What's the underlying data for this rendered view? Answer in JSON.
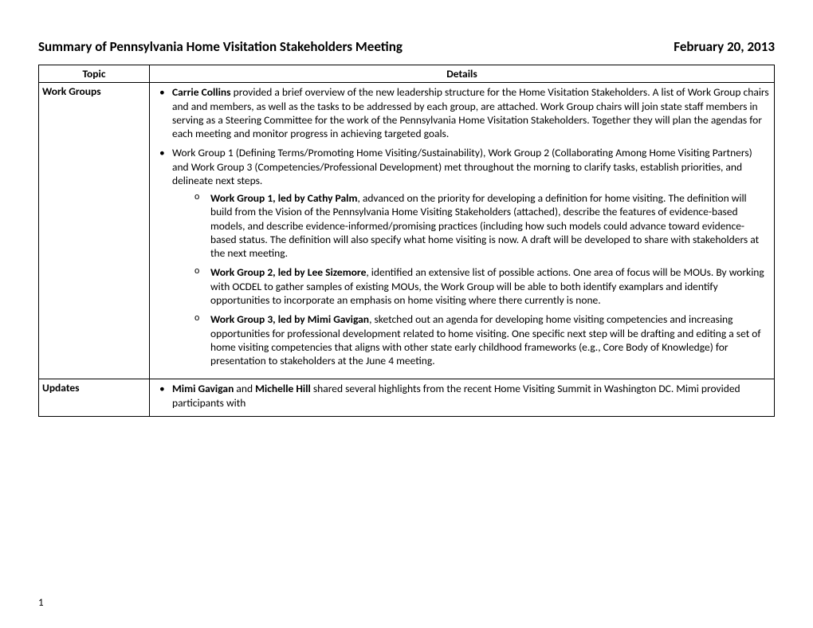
{
  "header": {
    "title": "Summary of Pennsylvania Home Visitation Stakeholders Meeting",
    "date": "February 20, 2013"
  },
  "columns": {
    "topic": "Topic",
    "details": "Details"
  },
  "row1": {
    "topic": "Work Groups",
    "b1_bold": "Carrie Collins",
    "b1_rest": " provided a brief overview of the new leadership structure for the Home Visitation Stakeholders. A list of Work Group chairs and and members, as well as the tasks to be addressed by each group, are attached. Work Group chairs will join state staff members in serving as a Steering Committee for the work of the Pennsylvania Home Visitation Stakeholders. Together they will plan the agendas for each meeting and monitor progress in achieving targeted goals.",
    "b2": "Work Group 1 (Defining Terms/Promoting Home Visiting/Sustainability), Work Group 2 (Collaborating Among Home Visiting Partners) and Work Group 3 (Competencies/Professional Development) met throughout the morning to clarify tasks, establish priorities, and delineate next steps.",
    "s1_bold": "Work Group 1, led by Cathy Palm",
    "s1_rest": ", advanced on the priority for developing a definition for home visiting. The definition will build from the Vision of the Pennsylvania Home Visiting Stakeholders (attached), describe the features of evidence-based models, and describe evidence-informed/promising practices (including how such models could advance toward evidence-based status. The definition will also specify what home visiting is now. A draft will be developed to share with stakeholders at the next meeting.",
    "s2_bold": "Work Group 2, led by Lee Sizemore",
    "s2_rest": ", identified an extensive list of possible actions. One area of focus will be MOUs. By working with OCDEL to gather samples of existing MOUs, the Work Group will be able to both identify examplars and identify opportunities to incorporate an emphasis on home visiting where there currently is none.",
    "s3_bold": "Work Group 3, led by Mimi Gavigan",
    "s3_rest": ", sketched out an agenda for developing home visiting competencies and increasing opportunities for professional development related to home visiting. One specific next step will be drafting and editing a set of home visiting competencies that aligns with other state early childhood frameworks (e.g., Core Body of Knowledge) for presentation to stakeholders at the June 4 meeting."
  },
  "row2": {
    "topic": "Updates",
    "b1_bold1": "Mimi Gavigan",
    "b1_mid": " and ",
    "b1_bold2": "Michelle Hill",
    "b1_rest": " shared several highlights from the recent Home Visiting Summit in Washington DC. Mimi provided participants with"
  },
  "pageNumber": "1"
}
